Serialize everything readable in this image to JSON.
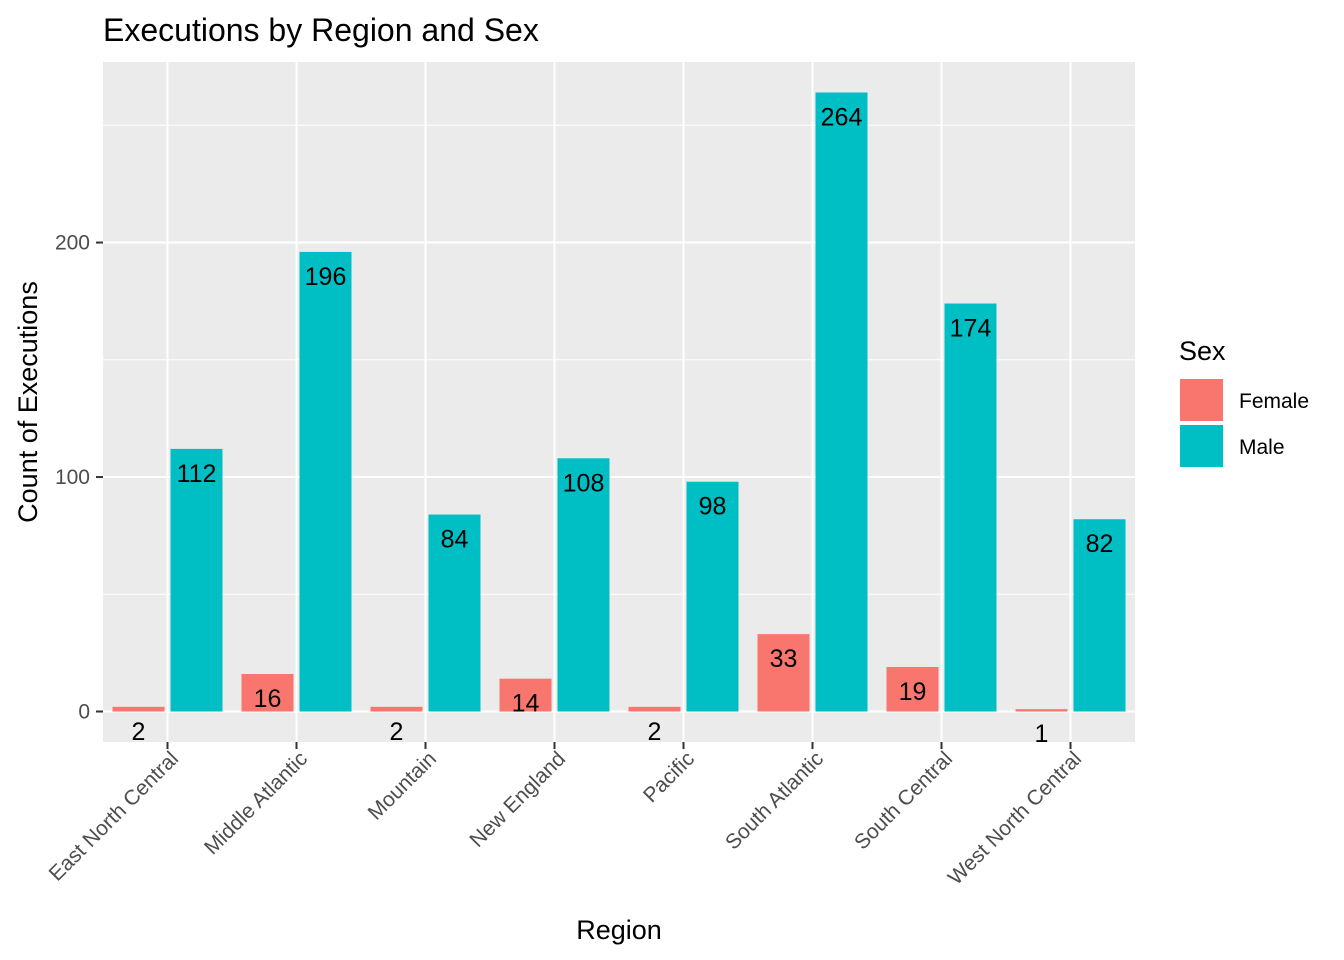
{
  "chart_data": {
    "type": "bar",
    "title": "Executions by Region and Sex",
    "xlabel": "Region",
    "ylabel": "Count of Executions",
    "categories": [
      "East North Central",
      "Middle Atlantic",
      "Mountain",
      "New England",
      "Pacific",
      "South Atlantic",
      "South Central",
      "West North Central"
    ],
    "series": [
      {
        "name": "Female",
        "color": "#F8766D",
        "values": [
          2,
          16,
          2,
          14,
          2,
          33,
          19,
          1
        ]
      },
      {
        "name": "Male",
        "color": "#00BFC4",
        "values": [
          112,
          196,
          84,
          108,
          98,
          264,
          174,
          82
        ]
      }
    ],
    "ylim": [
      -13,
      277
    ],
    "yticks": [
      0,
      100,
      200
    ],
    "grid": true,
    "legend": {
      "title": "Sex",
      "position": "right"
    }
  }
}
